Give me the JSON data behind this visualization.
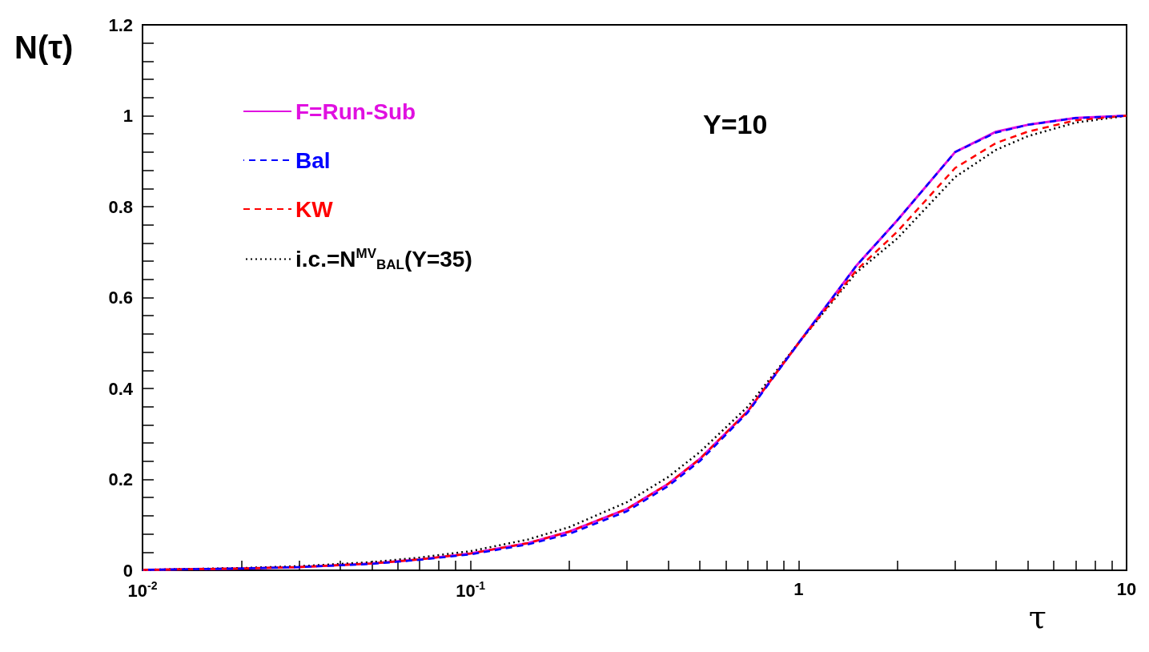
{
  "chart_data": {
    "type": "line",
    "xlabel": "τ",
    "ylabel": "N(τ)",
    "annotations": [
      "Y=10"
    ],
    "log": "x",
    "xlim": [
      0.01,
      10
    ],
    "ylim": [
      0,
      1.2
    ],
    "xticks": [
      {
        "value": 0.01,
        "label": "10$^{-2}$"
      },
      {
        "value": 0.02,
        "label": null
      },
      {
        "value": 0.03,
        "label": null
      },
      {
        "value": 0.04,
        "label": null
      },
      {
        "value": 0.05,
        "label": null
      },
      {
        "value": 0.06,
        "label": null
      },
      {
        "value": 0.07,
        "label": null
      },
      {
        "value": 0.08,
        "label": null
      },
      {
        "value": 0.09,
        "label": null
      },
      {
        "value": 0.1,
        "label": "10$^{-1}$"
      },
      {
        "value": 0.2,
        "label": null
      },
      {
        "value": 0.3,
        "label": null
      },
      {
        "value": 0.4,
        "label": null
      },
      {
        "value": 0.5,
        "label": null
      },
      {
        "value": 0.6,
        "label": null
      },
      {
        "value": 0.7,
        "label": null
      },
      {
        "value": 0.8,
        "label": null
      },
      {
        "value": 0.9,
        "label": null
      },
      {
        "value": 1,
        "label": "1"
      },
      {
        "value": 2,
        "label": null
      },
      {
        "value": 3,
        "label": null
      },
      {
        "value": 4,
        "label": null
      },
      {
        "value": 5,
        "label": null
      },
      {
        "value": 6,
        "label": null
      },
      {
        "value": 7,
        "label": null
      },
      {
        "value": 8,
        "label": null
      },
      {
        "value": 9,
        "label": null
      },
      {
        "value": 10,
        "label": "10"
      }
    ],
    "yticks": [
      0,
      {
        "value": 0.04,
        "label": null
      },
      {
        "value": 0.08,
        "label": null
      },
      {
        "value": 0.12,
        "label": null
      },
      {
        "value": 0.16,
        "label": null
      },
      0.2,
      {
        "value": 0.24,
        "label": null
      },
      {
        "value": 0.28,
        "label": null
      },
      {
        "value": 0.32,
        "label": null
      },
      {
        "value": 0.36,
        "label": null
      },
      0.4,
      {
        "value": 0.44,
        "label": null
      },
      {
        "value": 0.48,
        "label": null
      },
      {
        "value": 0.52,
        "label": null
      },
      {
        "value": 0.56,
        "label": null
      },
      0.6,
      {
        "value": 0.64,
        "label": null
      },
      {
        "value": 0.68,
        "label": null
      },
      {
        "value": 0.72,
        "label": null
      },
      {
        "value": 0.76,
        "label": null
      },
      0.8,
      {
        "value": 0.84,
        "label": null
      },
      {
        "value": 0.88,
        "label": null
      },
      {
        "value": 0.92,
        "label": null
      },
      {
        "value": 0.96,
        "label": null
      },
      1,
      {
        "value": 1.04,
        "label": null
      },
      {
        "value": 1.08,
        "label": null
      },
      {
        "value": 1.12,
        "label": null
      },
      {
        "value": 1.16,
        "label": null
      },
      1.2
    ],
    "x": [
      0.01,
      0.02,
      0.03,
      0.05,
      0.07,
      0.1,
      0.15,
      0.2,
      0.3,
      0.4,
      0.5,
      0.7,
      1,
      1.5,
      2,
      3,
      4,
      5,
      7,
      10
    ],
    "legend": "top left",
    "grid": false,
    "marker": "none",
    "series": [
      {
        "name": "F=Run-Sub",
        "color": "#e010e0",
        "line_style": "solid",
        "values": [
          0.001,
          0.004,
          0.007,
          0.015,
          0.024,
          0.037,
          0.06,
          0.085,
          0.135,
          0.19,
          0.245,
          0.35,
          0.5,
          0.67,
          0.77,
          0.92,
          0.965,
          0.98,
          0.995,
          1.0
        ]
      },
      {
        "name": "Bal",
        "color": "#0000ff",
        "line_style": "dashed",
        "values": [
          0.001,
          0.004,
          0.007,
          0.014,
          0.023,
          0.035,
          0.057,
          0.08,
          0.13,
          0.185,
          0.24,
          0.347,
          0.5,
          0.67,
          0.77,
          0.92,
          0.963,
          0.98,
          0.995,
          1.0
        ]
      },
      {
        "name": "KW",
        "color": "#ff0000",
        "line_style": "dashed",
        "values": [
          0.001,
          0.004,
          0.007,
          0.015,
          0.024,
          0.037,
          0.06,
          0.085,
          0.135,
          0.19,
          0.245,
          0.35,
          0.5,
          0.66,
          0.745,
          0.885,
          0.94,
          0.965,
          0.99,
          1.0
        ]
      },
      {
        "name": "i.c.=N$^{MV}$$_{BAL}$(Y=35)",
        "color": "#000000",
        "line_style": "dotted",
        "values": [
          0.001,
          0.005,
          0.009,
          0.018,
          0.028,
          0.042,
          0.068,
          0.095,
          0.15,
          0.205,
          0.26,
          0.36,
          0.5,
          0.655,
          0.73,
          0.865,
          0.925,
          0.955,
          0.985,
          1.0
        ]
      }
    ]
  }
}
